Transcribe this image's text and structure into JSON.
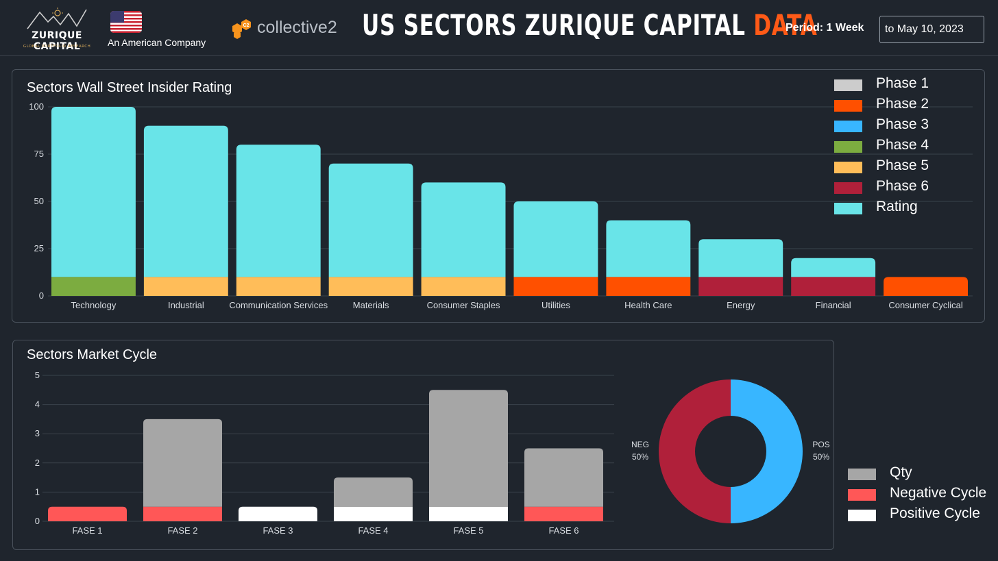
{
  "header": {
    "logo_name": "ZURIQUE CAPITAL",
    "logo_sub": "GLOBAL PORTFOLIO RESEARCH",
    "company": "An American Company",
    "partner": "collective2",
    "partner_badge": "C2",
    "title_main": "US SECTORS ZURIQUE CAPITAL ",
    "title_highlight": "DATA",
    "period_label": "Period: 1 Week",
    "date_value": "to May 10, 2023"
  },
  "colors": {
    "background": "#1f252d",
    "title_highlight": "#ff5a17",
    "phase1": "#cccccc",
    "phase2": "#ff5000",
    "phase3": "#38b6ff",
    "phase4": "#7cac40",
    "phase5": "#ffbd59",
    "phase6": "#b0203a",
    "rating": "#69e4e8",
    "qty": "#a6a6a6",
    "negative": "#ff5757",
    "positive": "#ffffff"
  },
  "chart_data": [
    {
      "type": "bar",
      "title": "Sectors Wall Street Insider Rating",
      "categories": [
        "Technology",
        "Industrial",
        "Communication Services",
        "Materials",
        "Consumer Staples",
        "Utilities",
        "Health Care",
        "Energy",
        "Financial",
        "Consumer Cyclical"
      ],
      "series": [
        {
          "name": "Rating",
          "values": [
            100,
            90,
            80,
            70,
            60,
            50,
            40,
            30,
            20,
            0
          ]
        }
      ],
      "phase_per_category": [
        "Phase 4",
        "Phase 5",
        "Phase 5",
        "Phase 5",
        "Phase 5",
        "Phase 2",
        "Phase 2",
        "Phase 6",
        "Phase 6",
        "Phase 2"
      ],
      "phase_bar_value": 10,
      "legend": [
        "Phase 1",
        "Phase 2",
        "Phase 3",
        "Phase 4",
        "Phase 5",
        "Phase 6",
        "Rating"
      ],
      "yticks": [
        "0",
        "25",
        "50",
        "75",
        "100"
      ],
      "ylim": [
        0,
        100
      ],
      "grid": true,
      "legend_position": "top-right"
    },
    {
      "type": "bar",
      "title": "Sectors Market Cycle",
      "categories": [
        "FASE 1",
        "FASE 2",
        "FASE 3",
        "FASE 4",
        "FASE 5",
        "FASE 6"
      ],
      "series": [
        {
          "name": "Qty",
          "values": [
            0,
            3,
            0,
            1,
            4,
            2
          ]
        },
        {
          "name": "Negative Cycle",
          "values": [
            0.5,
            0.5,
            0,
            0,
            0,
            0.5
          ]
        },
        {
          "name": "Positive Cycle",
          "values": [
            0,
            0,
            0.5,
            0.5,
            0.5,
            0
          ]
        }
      ],
      "legend": [
        "Qty",
        "Negative Cycle",
        "Positive Cycle"
      ],
      "yticks": [
        "0",
        "1",
        "2",
        "3",
        "4",
        "5"
      ],
      "ylim": [
        0,
        5
      ],
      "grid": true,
      "legend_position": "bottom-right"
    },
    {
      "type": "pie",
      "labels": [
        "POS",
        "NEG"
      ],
      "values": [
        50,
        50
      ],
      "value_labels": [
        "50%",
        "50%"
      ],
      "donut": true
    }
  ]
}
